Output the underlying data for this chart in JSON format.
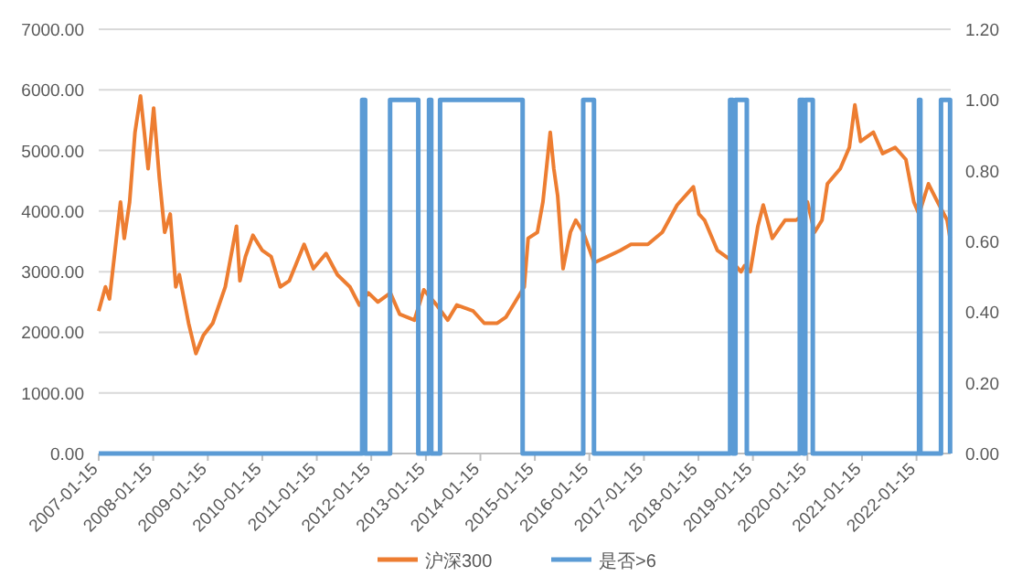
{
  "chart_data": {
    "type": "line",
    "xlim": [
      "2007-01-15",
      "2022-09-01"
    ],
    "xticks": [
      "2007-01-15",
      "2008-01-15",
      "2009-01-15",
      "2010-01-15",
      "2011-01-15",
      "2012-01-15",
      "2013-01-15",
      "2014-01-15",
      "2015-01-15",
      "2016-01-15",
      "2017-01-15",
      "2018-01-15",
      "2019-01-15",
      "2020-01-15",
      "2021-01-15",
      "2022-01-15"
    ],
    "ylim": [
      0,
      7000
    ],
    "yticks": [
      {
        "value": 0,
        "label": "0.00"
      },
      {
        "value": 1000,
        "label": "1000.00"
      },
      {
        "value": 2000,
        "label": "2000.00"
      },
      {
        "value": 3000,
        "label": "3000.00"
      },
      {
        "value": 4000,
        "label": "4000.00"
      },
      {
        "value": 5000,
        "label": "5000.00"
      },
      {
        "value": 6000,
        "label": "6000.00"
      },
      {
        "value": 7000,
        "label": "7000.00"
      }
    ],
    "y2lim": [
      0,
      1.2
    ],
    "y2ticks": [
      {
        "value": 0,
        "label": "0.00"
      },
      {
        "value": 0.2,
        "label": "0.20"
      },
      {
        "value": 0.4,
        "label": "0.40"
      },
      {
        "value": 0.6,
        "label": "0.60"
      },
      {
        "value": 0.8,
        "label": "0.80"
      },
      {
        "value": 1,
        "label": "1.00"
      },
      {
        "value": 1.2,
        "label": "1.20"
      }
    ],
    "grid": "y",
    "legend": "bottom",
    "series": [
      {
        "name": "沪深300",
        "color": "#ed7d31",
        "x": [
          "2007-01-15",
          "2007-03-01",
          "2007-03-28",
          "2007-05-18",
          "2007-06-10",
          "2007-07-05",
          "2007-08-10",
          "2007-09-15",
          "2007-10-22",
          "2007-12-12",
          "2008-01-18",
          "2008-02-25",
          "2008-04-01",
          "2008-05-08",
          "2008-06-14",
          "2008-07-08",
          "2008-09-08",
          "2008-10-27",
          "2008-12-16",
          "2009-02-17",
          "2009-05-12",
          "2009-07-26",
          "2009-08-18",
          "2009-09-24",
          "2009-11-13",
          "2010-01-15",
          "2010-03-15",
          "2010-05-15",
          "2010-07-15",
          "2010-10-22",
          "2010-12-23",
          "2011-03-18",
          "2011-06-02",
          "2011-08-25",
          "2011-10-27",
          "2011-12-27",
          "2012-02-28",
          "2012-05-22",
          "2012-07-23",
          "2012-10-30",
          "2013-01-01",
          "2013-03-28",
          "2013-06-10",
          "2013-08-10",
          "2013-11-28",
          "2014-02-10",
          "2014-05-08",
          "2014-07-05",
          "2014-09-05",
          "2014-11-05",
          "2014-12-01",
          "2015-02-01",
          "2015-03-10",
          "2015-04-28",
          "2015-05-22",
          "2015-06-17",
          "2015-07-23",
          "2015-09-10",
          "2015-10-16",
          "2015-12-05",
          "2016-02-17",
          "2016-05-15",
          "2016-08-08",
          "2016-10-20",
          "2017-02-10",
          "2017-05-18",
          "2017-08-25",
          "2017-12-12",
          "2018-01-18",
          "2018-02-25",
          "2018-05-22",
          "2018-08-15",
          "2018-10-27",
          "2018-11-20",
          "2018-12-28",
          "2019-02-17",
          "2019-03-25",
          "2019-05-25",
          "2019-08-18",
          "2019-11-01",
          "2019-12-20",
          "2020-01-15",
          "2020-03-03",
          "2020-04-22",
          "2020-05-28",
          "2020-08-22",
          "2020-10-22",
          "2020-11-28",
          "2021-01-05",
          "2021-04-01",
          "2021-06-02",
          "2021-08-25",
          "2021-11-05",
          "2021-12-28",
          "2022-02-01",
          "2022-04-05",
          "2022-06-05",
          "2022-08-08",
          "2022-08-28"
        ],
        "values": [
          2350,
          2750,
          2550,
          3650,
          4150,
          3550,
          4150,
          5300,
          5900,
          4700,
          5700,
          4550,
          3650,
          3950,
          2750,
          2950,
          2150,
          1650,
          1950,
          2150,
          2750,
          3750,
          2850,
          3250,
          3600,
          3350,
          3250,
          2750,
          2850,
          3450,
          3050,
          3300,
          2950,
          2750,
          2450,
          2650,
          2500,
          2650,
          2300,
          2200,
          2700,
          2450,
          2200,
          2450,
          2350,
          2150,
          2150,
          2250,
          2500,
          2750,
          3550,
          3650,
          4150,
          5300,
          4700,
          4250,
          3050,
          3650,
          3850,
          3650,
          3150,
          3250,
          3350,
          3450,
          3450,
          3650,
          4100,
          4400,
          3950,
          3850,
          3350,
          3200,
          3000,
          3100,
          3000,
          3750,
          4100,
          3550,
          3850,
          3850,
          3950,
          4150,
          3650,
          3850,
          4450,
          4700,
          5050,
          5750,
          5150,
          5300,
          4950,
          5050,
          4850,
          4150,
          3950,
          4450,
          4150,
          3850,
          3550
        ]
      },
      {
        "name": "是否>6",
        "color": "#5b9bd5",
        "type": "step",
        "axis": "y2",
        "x": [
          "2007-01-15",
          "2011-11-15",
          "2011-12-05",
          "2012-05-20",
          "2012-11-25",
          "2013-02-05",
          "2013-02-20",
          "2013-04-20",
          "2014-10-25",
          "2015-12-05",
          "2016-02-15",
          "2018-08-15",
          "2018-09-01",
          "2018-09-20",
          "2018-12-05",
          "2019-11-25",
          "2019-12-20",
          "2020-01-01",
          "2020-02-20",
          "2022-02-01",
          "2022-02-10",
          "2022-06-28",
          "2022-08-28"
        ],
        "values": [
          0,
          1,
          0,
          1,
          0,
          1,
          0,
          1,
          0,
          1,
          0,
          1,
          0,
          1,
          0,
          1,
          0,
          1,
          0,
          1,
          0,
          1,
          0
        ]
      }
    ]
  }
}
